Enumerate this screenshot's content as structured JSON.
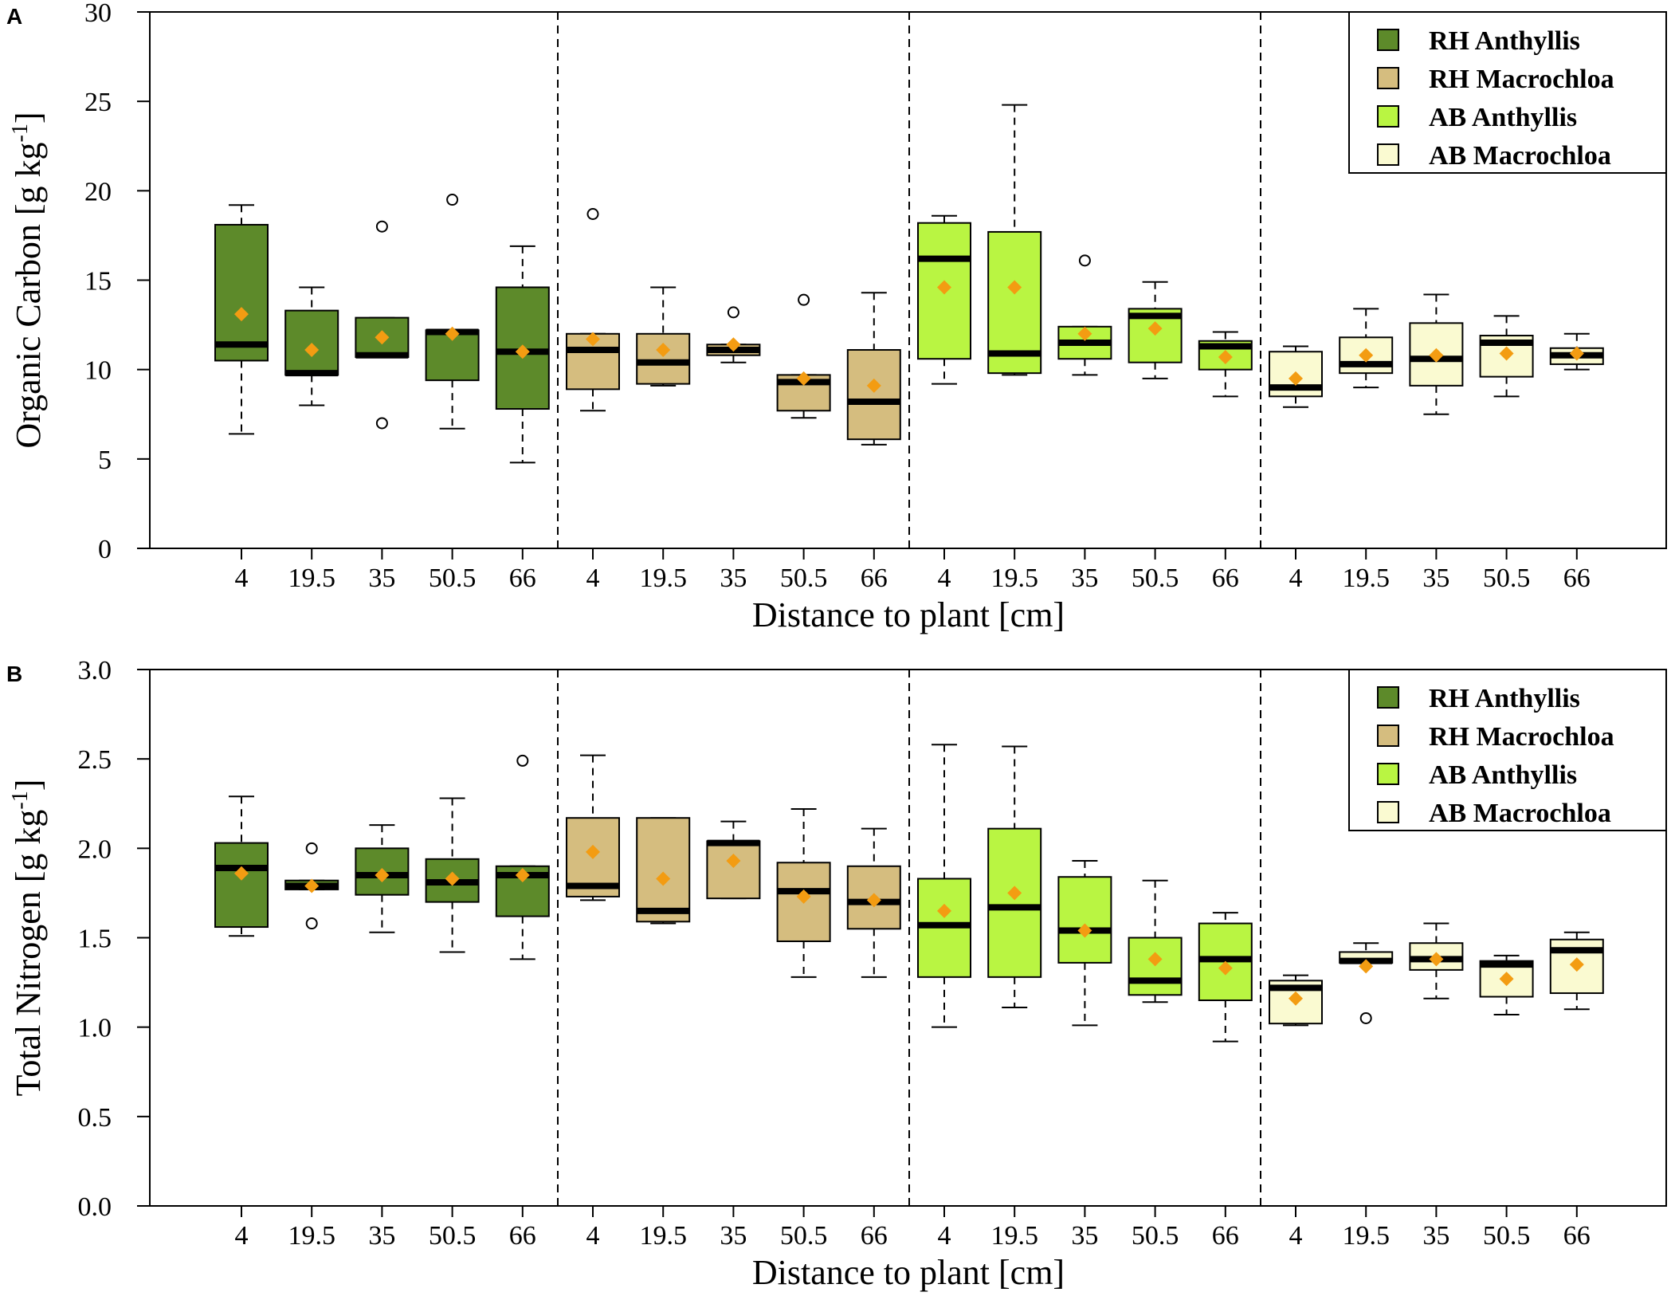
{
  "groups": [
    {
      "name": "RH Anthyllis",
      "color": "#5d8a2a"
    },
    {
      "name": "RH Macrochloa",
      "color": "#d5bd7f"
    },
    {
      "name": "AB Anthyllis",
      "color": "#b9f542"
    },
    {
      "name": "AB Macrochloa",
      "color": "#fafad1"
    }
  ],
  "distances": [
    "4",
    "19.5",
    "35",
    "50.5",
    "66"
  ],
  "colors": {
    "mean_marker": "#f39c12",
    "median": "#000000",
    "axis": "#000000"
  },
  "chart_data": [
    {
      "panel_label": "A",
      "type": "boxplot",
      "xlabel": "Distance to plant [cm]",
      "ylabel_prefix": "Organic Carbon [g kg",
      "ylabel_sup": "-1",
      "ylabel_suffix": "]",
      "ylim": [
        0,
        30
      ],
      "yticks": [
        "0",
        "5",
        "10",
        "15",
        "20",
        "25",
        "30"
      ],
      "boxes": [
        {
          "min": 6.4,
          "q1": 10.5,
          "median": 11.4,
          "q3": 18.1,
          "max": 19.2,
          "mean": 13.1,
          "outliers": []
        },
        {
          "min": 8.0,
          "q1": 9.7,
          "median": 9.8,
          "q3": 13.3,
          "max": 14.6,
          "mean": 11.1,
          "outliers": []
        },
        {
          "min": 10.7,
          "q1": 10.7,
          "median": 10.8,
          "q3": 12.9,
          "max": 12.9,
          "mean": 11.8,
          "outliers": [
            18.0,
            7.0
          ]
        },
        {
          "min": 6.7,
          "q1": 9.4,
          "median": 12.1,
          "q3": 12.2,
          "max": 12.2,
          "mean": 12.0,
          "outliers": [
            19.5
          ]
        },
        {
          "min": 4.8,
          "q1": 7.8,
          "median": 11.0,
          "q3": 14.6,
          "max": 16.9,
          "mean": 11.0,
          "outliers": []
        },
        {
          "min": 7.7,
          "q1": 8.9,
          "median": 11.1,
          "q3": 12.0,
          "max": 12.0,
          "mean": 11.7,
          "outliers": [
            18.7
          ]
        },
        {
          "min": 9.1,
          "q1": 9.2,
          "median": 10.4,
          "q3": 12.0,
          "max": 14.6,
          "mean": 11.1,
          "outliers": []
        },
        {
          "min": 10.4,
          "q1": 10.8,
          "median": 11.1,
          "q3": 11.4,
          "max": 11.4,
          "mean": 11.4,
          "outliers": [
            13.2
          ]
        },
        {
          "min": 7.3,
          "q1": 7.7,
          "median": 9.3,
          "q3": 9.7,
          "max": 9.7,
          "mean": 9.5,
          "outliers": [
            13.9
          ]
        },
        {
          "min": 5.8,
          "q1": 6.1,
          "median": 8.2,
          "q3": 11.1,
          "max": 14.3,
          "mean": 9.1,
          "outliers": []
        },
        {
          "min": 9.2,
          "q1": 10.6,
          "median": 16.2,
          "q3": 18.2,
          "max": 18.6,
          "mean": 14.6,
          "outliers": []
        },
        {
          "min": 9.7,
          "q1": 9.8,
          "median": 10.9,
          "q3": 17.7,
          "max": 24.8,
          "mean": 14.6,
          "outliers": []
        },
        {
          "min": 9.7,
          "q1": 10.6,
          "median": 11.5,
          "q3": 12.4,
          "max": 12.4,
          "mean": 12.0,
          "outliers": [
            16.1
          ]
        },
        {
          "min": 9.5,
          "q1": 10.4,
          "median": 13.0,
          "q3": 13.4,
          "max": 14.9,
          "mean": 12.3,
          "outliers": []
        },
        {
          "min": 8.5,
          "q1": 10.0,
          "median": 11.3,
          "q3": 11.6,
          "max": 12.1,
          "mean": 10.7,
          "outliers": []
        },
        {
          "min": 7.9,
          "q1": 8.5,
          "median": 9.0,
          "q3": 11.0,
          "max": 11.3,
          "mean": 9.5,
          "outliers": []
        },
        {
          "min": 9.0,
          "q1": 9.8,
          "median": 10.3,
          "q3": 11.8,
          "max": 13.4,
          "mean": 10.8,
          "outliers": []
        },
        {
          "min": 7.5,
          "q1": 9.1,
          "median": 10.6,
          "q3": 12.6,
          "max": 14.2,
          "mean": 10.8,
          "outliers": []
        },
        {
          "min": 8.5,
          "q1": 9.6,
          "median": 11.5,
          "q3": 11.9,
          "max": 13.0,
          "mean": 10.9,
          "outliers": []
        },
        {
          "min": 10.0,
          "q1": 10.3,
          "median": 10.8,
          "q3": 11.2,
          "max": 12.0,
          "mean": 10.9,
          "outliers": []
        }
      ]
    },
    {
      "panel_label": "B",
      "type": "boxplot",
      "xlabel": "Distance to plant [cm]",
      "ylabel_prefix": "Total Nitrogen [g kg",
      "ylabel_sup": "-1",
      "ylabel_suffix": "]",
      "ylim": [
        0,
        3
      ],
      "yticks": [
        "0.0",
        "0.5",
        "1.0",
        "1.5",
        "2.0",
        "2.5",
        "3.0"
      ],
      "boxes": [
        {
          "min": 1.51,
          "q1": 1.56,
          "median": 1.89,
          "q3": 2.03,
          "max": 2.29,
          "mean": 1.86,
          "outliers": []
        },
        {
          "min": 1.77,
          "q1": 1.77,
          "median": 1.79,
          "q3": 1.82,
          "max": 1.82,
          "mean": 1.79,
          "outliers": [
            2.0,
            1.58
          ]
        },
        {
          "min": 1.53,
          "q1": 1.74,
          "median": 1.85,
          "q3": 2.0,
          "max": 2.13,
          "mean": 1.85,
          "outliers": []
        },
        {
          "min": 1.42,
          "q1": 1.7,
          "median": 1.81,
          "q3": 1.94,
          "max": 2.28,
          "mean": 1.83,
          "outliers": []
        },
        {
          "min": 1.38,
          "q1": 1.62,
          "median": 1.85,
          "q3": 1.9,
          "max": 1.9,
          "mean": 1.85,
          "outliers": [
            2.49
          ]
        },
        {
          "min": 1.71,
          "q1": 1.73,
          "median": 1.79,
          "q3": 2.17,
          "max": 2.52,
          "mean": 1.98,
          "outliers": []
        },
        {
          "min": 1.58,
          "q1": 1.59,
          "median": 1.65,
          "q3": 2.17,
          "max": 2.17,
          "mean": 1.83,
          "outliers": []
        },
        {
          "min": 1.72,
          "q1": 1.72,
          "median": 2.03,
          "q3": 2.04,
          "max": 2.15,
          "mean": 1.93,
          "outliers": []
        },
        {
          "min": 1.28,
          "q1": 1.48,
          "median": 1.76,
          "q3": 1.92,
          "max": 2.22,
          "mean": 1.73,
          "outliers": []
        },
        {
          "min": 1.28,
          "q1": 1.55,
          "median": 1.7,
          "q3": 1.9,
          "max": 2.11,
          "mean": 1.71,
          "outliers": []
        },
        {
          "min": 1.0,
          "q1": 1.28,
          "median": 1.57,
          "q3": 1.83,
          "max": 2.58,
          "mean": 1.65,
          "outliers": []
        },
        {
          "min": 1.11,
          "q1": 1.28,
          "median": 1.67,
          "q3": 2.11,
          "max": 2.57,
          "mean": 1.75,
          "outliers": []
        },
        {
          "min": 1.01,
          "q1": 1.36,
          "median": 1.54,
          "q3": 1.84,
          "max": 1.93,
          "mean": 1.54,
          "outliers": []
        },
        {
          "min": 1.14,
          "q1": 1.18,
          "median": 1.26,
          "q3": 1.5,
          "max": 1.82,
          "mean": 1.38,
          "outliers": []
        },
        {
          "min": 0.92,
          "q1": 1.15,
          "median": 1.38,
          "q3": 1.58,
          "max": 1.64,
          "mean": 1.33,
          "outliers": []
        },
        {
          "min": 1.01,
          "q1": 1.02,
          "median": 1.22,
          "q3": 1.26,
          "max": 1.29,
          "mean": 1.16,
          "outliers": []
        },
        {
          "min": 1.36,
          "q1": 1.36,
          "median": 1.37,
          "q3": 1.42,
          "max": 1.47,
          "mean": 1.34,
          "outliers": [
            1.05
          ]
        },
        {
          "min": 1.16,
          "q1": 1.32,
          "median": 1.38,
          "q3": 1.47,
          "max": 1.58,
          "mean": 1.38,
          "outliers": []
        },
        {
          "min": 1.07,
          "q1": 1.17,
          "median": 1.35,
          "q3": 1.37,
          "max": 1.4,
          "mean": 1.27,
          "outliers": []
        },
        {
          "min": 1.1,
          "q1": 1.19,
          "median": 1.43,
          "q3": 1.49,
          "max": 1.53,
          "mean": 1.35,
          "outliers": []
        }
      ]
    }
  ]
}
